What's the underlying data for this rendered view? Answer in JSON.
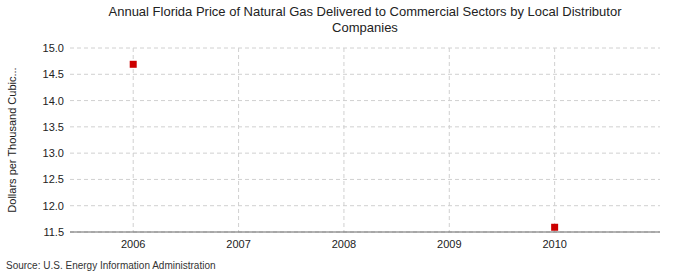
{
  "chart_data": {
    "type": "scatter",
    "title": "Annual Florida Price of Natural Gas Delivered to Commercial Sectors by Local Distributor\nCompanies",
    "y_label": "Dollars per Thousand Cubic...",
    "source": "Source: U.S. Energy Information Administration",
    "x": [
      2006,
      2010
    ],
    "values": [
      14.69,
      11.59
    ],
    "color": "#cc0000",
    "marker": "square",
    "xlim": [
      2005.4,
      2011.0
    ],
    "ylim": [
      11.5,
      15.0
    ],
    "xticks": [
      2006,
      2007,
      2008,
      2009,
      2010
    ],
    "yticks": [
      11.5,
      {
        "value": 12.0,
        "label": "12.0"
      },
      12.5,
      {
        "value": 13.0,
        "label": "13.0"
      },
      13.5,
      {
        "value": 14.0,
        "label": "14.0"
      },
      14.5,
      {
        "value": 15.0,
        "label": "15.0"
      }
    ],
    "grid": true
  }
}
